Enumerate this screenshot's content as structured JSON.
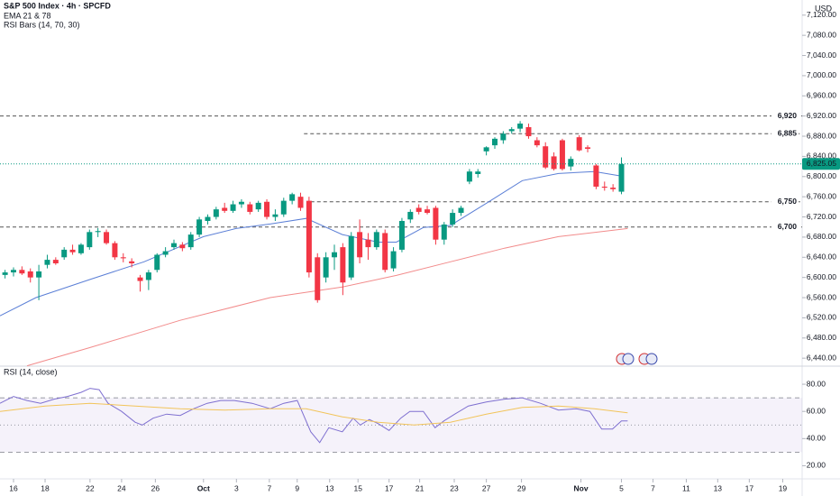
{
  "chart_data": [
    {
      "type": "candlestick",
      "title": "S&P 500 Index · 4h · SPCFD",
      "indicators": [
        "EMA 21 & 78",
        "RSI Bars (14, 70, 30)"
      ],
      "currency": "USD",
      "up_color": "#089981",
      "down_color": "#f23645",
      "x": [
        -0.5,
        0,
        0.5,
        1,
        1.5,
        2,
        2.5,
        3,
        3.5,
        4,
        4.5,
        5,
        5.5,
        6,
        6.5,
        7,
        7.5,
        8,
        8.5,
        9,
        9.5,
        10,
        10.5,
        11,
        11.5,
        12,
        12.5,
        13,
        13.5,
        14,
        14.5,
        15,
        15.5,
        16,
        16.5,
        17,
        17.5,
        18,
        18.5,
        19,
        19.5,
        20,
        20.5,
        21,
        21.5,
        22,
        22.5,
        23,
        23.5,
        24,
        24.5,
        25,
        25.5,
        26,
        26.5,
        27,
        27.5,
        28,
        28.5,
        29,
        29.5,
        30,
        30.5,
        31,
        31.5,
        32,
        32.5,
        33,
        33.5,
        34,
        34.5,
        35,
        35.5,
        36
      ],
      "open": [
        6605,
        6610,
        6615,
        6612,
        6600,
        6625,
        6635,
        6640,
        6655,
        6648,
        6660,
        6690,
        6690,
        6668,
        6640,
        6632,
        6600,
        6595,
        6615,
        6645,
        6660,
        6665,
        6660,
        6685,
        6712,
        6720,
        6738,
        6732,
        6745,
        6745,
        6735,
        6750,
        6720,
        6725,
        6752,
        6760,
        6752,
        6640,
        6600,
        6640,
        6660,
        6600,
        6690,
        6675,
        6660,
        6688,
        6618,
        6655,
        6715,
        6738,
        6735,
        6738,
        6675,
        6705,
        6728,
        6790,
        6805,
        6850,
        6862,
        6872,
        6890,
        6895,
        6898,
        6872,
        6860,
        6840,
        6872,
        6820,
        6878,
        6858,
        6822,
        6780,
        6778,
        6770
      ],
      "high": [
        6615,
        6620,
        6622,
        6618,
        6625,
        6645,
        6640,
        6660,
        6665,
        6668,
        6695,
        6698,
        6695,
        6672,
        6648,
        6638,
        6605,
        6615,
        6648,
        6660,
        6675,
        6670,
        6690,
        6720,
        6725,
        6740,
        6748,
        6752,
        6755,
        6750,
        6752,
        6755,
        6735,
        6758,
        6768,
        6768,
        6760,
        6648,
        6650,
        6665,
        6668,
        6690,
        6715,
        6688,
        6695,
        6695,
        6660,
        6718,
        6735,
        6745,
        6742,
        6742,
        6710,
        6735,
        6742,
        6815,
        6815,
        6860,
        6878,
        6890,
        6898,
        6910,
        6905,
        6878,
        6868,
        6848,
        6875,
        6840,
        6882,
        6862,
        6825,
        6790,
        6785,
        6838
      ],
      "low": [
        6598,
        6602,
        6605,
        6590,
        6555,
        6618,
        6625,
        6635,
        6645,
        6645,
        6655,
        6680,
        6665,
        6635,
        6630,
        6620,
        6572,
        6575,
        6610,
        6640,
        6655,
        6652,
        6655,
        6680,
        6705,
        6715,
        6728,
        6728,
        6738,
        6725,
        6730,
        6715,
        6712,
        6720,
        6745,
        6732,
        6600,
        6550,
        6590,
        6615,
        6565,
        6595,
        6628,
        6635,
        6655,
        6610,
        6612,
        6650,
        6708,
        6725,
        6725,
        6665,
        6665,
        6700,
        6722,
        6785,
        6798,
        6842,
        6855,
        6865,
        6885,
        6888,
        6875,
        6858,
        6815,
        6812,
        6812,
        6812,
        6850,
        6848,
        6775,
        6772,
        6770,
        6765
      ],
      "close": [
        6610,
        6615,
        6608,
        6600,
        6612,
        6635,
        6628,
        6655,
        6650,
        6665,
        6690,
        6692,
        6668,
        6640,
        6638,
        6628,
        6593,
        6610,
        6645,
        6652,
        6668,
        6658,
        6685,
        6715,
        6720,
        6735,
        6732,
        6745,
        6750,
        6730,
        6748,
        6720,
        6725,
        6752,
        6765,
        6738,
        6610,
        6555,
        6640,
        6650,
        6590,
        6682,
        6640,
        6660,
        6690,
        6615,
        6652,
        6712,
        6730,
        6730,
        6728,
        6675,
        6705,
        6728,
        6738,
        6810,
        6810,
        6858,
        6875,
        6885,
        6894,
        6905,
        6880,
        6862,
        6818,
        6815,
        6815,
        6835,
        6852,
        6855,
        6780,
        6778,
        6775,
        6825
      ],
      "lines": [
        {
          "color": "#5b7fd6",
          "x": [
            -0.8,
            1.33,
            4.53,
            7.73,
            11.25,
            13.17,
            15.2,
            17.33,
            19.47,
            21.6,
            22.67,
            24.27,
            25.87,
            28,
            30.13,
            32.27,
            34.4,
            36
          ],
          "values": [
            6524,
            6560,
            6596,
            6631,
            6681,
            6697,
            6706,
            6717,
            6685,
            6670,
            6670,
            6699,
            6703,
            6747,
            6792,
            6806,
            6810,
            6801
          ]
        },
        {
          "color": "#f28b8b",
          "x": [
            0.8,
            4.53,
            9.87,
            15.2,
            19.47,
            22.67,
            25.87,
            29.07,
            32.27,
            36.37
          ],
          "values": [
            6425,
            6461,
            6515,
            6560,
            6581,
            6604,
            6631,
            6658,
            6681,
            6697
          ]
        }
      ],
      "levels": [
        {
          "value": 6920,
          "label": "6,920"
        },
        {
          "value": 6885,
          "label": "6,885",
          "from": 17.2
        },
        {
          "value": 6750,
          "label": "6,750",
          "from": 17.6
        },
        {
          "value": 6700,
          "label": "6,700"
        }
      ],
      "last_price": {
        "value": 6825.05,
        "label": "6,825.05",
        "color": "#089981"
      },
      "xlim": [
        -0.8,
        46.7
      ],
      "xticks": [
        {
          "value": 0,
          "label": "16"
        },
        {
          "value": 1.87,
          "label": "18"
        },
        {
          "value": 4.53,
          "label": "22"
        },
        {
          "value": 6.4,
          "label": "24"
        },
        {
          "value": 8.4,
          "label": "26"
        },
        {
          "value": 11.25,
          "label": "Oct"
        },
        {
          "value": 13.2,
          "label": "3"
        },
        {
          "value": 15.15,
          "label": "7"
        },
        {
          "value": 16.8,
          "label": "9"
        },
        {
          "value": 18.72,
          "label": "13"
        },
        {
          "value": 20.4,
          "label": "15"
        },
        {
          "value": 22.24,
          "label": "17"
        },
        {
          "value": 24.05,
          "label": "21"
        },
        {
          "value": 26.1,
          "label": "23"
        },
        {
          "value": 28,
          "label": "27"
        },
        {
          "value": 30.08,
          "label": "29"
        },
        {
          "value": 33.6,
          "label": "Nov"
        },
        {
          "value": 36,
          "label": "5"
        },
        {
          "value": 37.87,
          "label": "7"
        },
        {
          "value": 39.84,
          "label": "11"
        },
        {
          "value": 41.7,
          "label": "13"
        },
        {
          "value": 43.57,
          "label": "17"
        },
        {
          "value": 45.55,
          "label": "19"
        }
      ],
      "ylim": [
        6426,
        7150
      ],
      "yticks": [
        {
          "value": 7120,
          "label": "7,120.00"
        },
        {
          "value": 7080,
          "label": "7,080.00"
        },
        {
          "value": 7040,
          "label": "7,040.00"
        },
        {
          "value": 7000,
          "label": "7,000.00"
        },
        {
          "value": 6960,
          "label": "6,960.00"
        },
        {
          "value": 6920,
          "label": "6,920.00"
        },
        {
          "value": 6880,
          "label": "6,880.00"
        },
        {
          "value": 6840,
          "label": "6,840.00"
        },
        {
          "value": 6800,
          "label": "6,800.00"
        },
        {
          "value": 6760,
          "label": "6,760.00"
        },
        {
          "value": 6720,
          "label": "6,720.00"
        },
        {
          "value": 6680,
          "label": "6,680.00"
        },
        {
          "value": 6640,
          "label": "6,640.00"
        },
        {
          "value": 6600,
          "label": "6,600.00"
        },
        {
          "value": 6560,
          "label": "6,560.00"
        },
        {
          "value": 6520,
          "label": "6,520.00"
        },
        {
          "value": 6480,
          "label": "6,480.00"
        },
        {
          "value": 6440,
          "label": "6,440.00"
        }
      ]
    },
    {
      "type": "line",
      "title": "RSI (14, close)",
      "series": [
        {
          "color": "#7e6fd0",
          "x": [
            -0.8,
            0,
            0.8,
            1.6,
            2.4,
            3.2,
            4,
            4.53,
            5.07,
            5.6,
            6.4,
            7.2,
            7.63,
            8.27,
            9.07,
            9.87,
            10.67,
            11.47,
            12.27,
            13.07,
            14.13,
            15.2,
            16,
            16.8,
            17.6,
            18.13,
            18.67,
            19.47,
            20.11,
            20.53,
            21.07,
            21.6,
            22.24,
            22.93,
            23.47,
            24.27,
            24.96,
            25.49,
            26.13,
            26.93,
            28,
            29.07,
            30.13,
            31.2,
            32.27,
            33.33,
            34.13,
            34.83,
            35.47,
            36,
            36.37
          ],
          "values": [
            66,
            71,
            68,
            66,
            69,
            71,
            74,
            77,
            76,
            66,
            60,
            52,
            50,
            55,
            58,
            57,
            62,
            66,
            68,
            68,
            66,
            62,
            66,
            68,
            45,
            37,
            48,
            45,
            55,
            50,
            54,
            51,
            46,
            55,
            60,
            60,
            48,
            53,
            58,
            64,
            67,
            69,
            70,
            66,
            61,
            62,
            60,
            47,
            47,
            53,
            53
          ]
        },
        {
          "color": "#f2c45a",
          "x": [
            -0.8,
            1.87,
            4.53,
            7.2,
            9.87,
            12.53,
            15.2,
            17.33,
            19.47,
            21.6,
            23.73,
            25.87,
            28,
            30.13,
            32.27,
            34.4,
            36.37
          ],
          "values": [
            60,
            64,
            66,
            64,
            62,
            61,
            62,
            62,
            56,
            52,
            50,
            52,
            58,
            63,
            64,
            62,
            59
          ]
        }
      ],
      "bands": [
        70,
        50,
        30
      ],
      "ylim": [
        11,
        92
      ],
      "yticks": [
        {
          "value": 80,
          "label": "80.00"
        },
        {
          "value": 60,
          "label": "60.00"
        },
        {
          "value": 40,
          "label": "40.00"
        },
        {
          "value": 20,
          "label": "20.00"
        }
      ]
    }
  ]
}
